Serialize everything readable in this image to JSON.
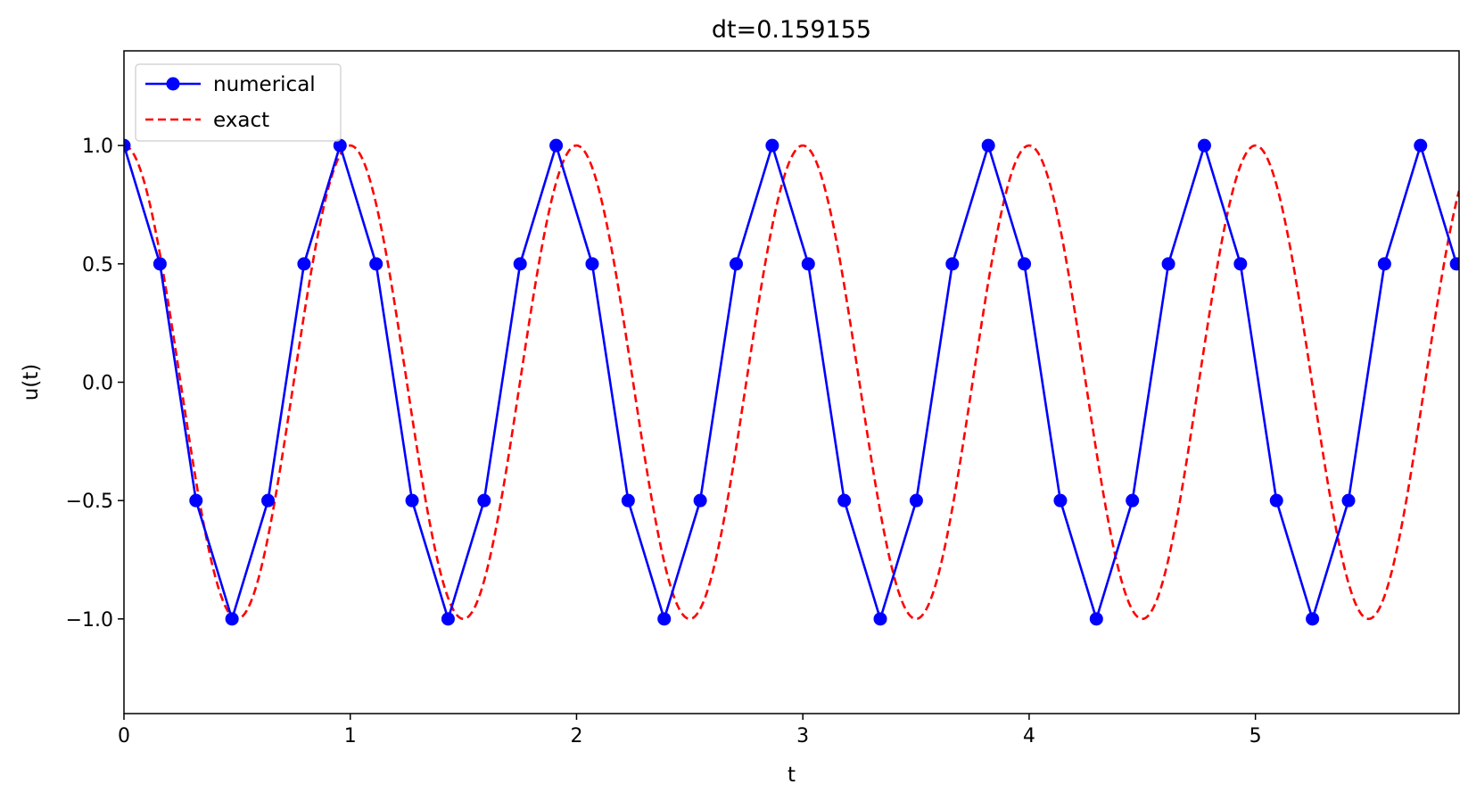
{
  "chart_data": {
    "type": "line",
    "title": "dt=0.159155",
    "xlabel": "t",
    "ylabel": "u(t)",
    "xlim": [
      0,
      5.9
    ],
    "ylim": [
      -1.4,
      1.4
    ],
    "x_ticks": [
      0,
      1,
      2,
      3,
      4,
      5
    ],
    "x_tick_labels": [
      "0",
      "1",
      "2",
      "3",
      "4",
      "5"
    ],
    "y_ticks": [
      1.0,
      0.5,
      0.0,
      -0.5,
      -1.0
    ],
    "y_tick_labels": [
      "1.0",
      "0.5",
      "0.0",
      "−0.5",
      "−1.0"
    ],
    "grid": false,
    "legend_position": "upper-left",
    "series": [
      {
        "name": "numerical",
        "color": "#0000ff",
        "style": "solid-with-circle-markers",
        "dt": 0.159155,
        "values": [
          1.0,
          0.5,
          -0.5,
          -1.0,
          -0.5,
          0.5,
          1.0,
          0.5,
          -0.5,
          -1.0,
          -0.5,
          0.5,
          1.0,
          0.5,
          -0.5,
          -1.0,
          -0.5,
          0.5,
          1.0,
          0.5,
          -0.5,
          -1.0,
          -0.5,
          0.5,
          1.0,
          0.5,
          -0.5,
          -1.0,
          -0.5,
          0.5,
          1.0,
          0.5,
          -0.5,
          -1.0,
          -0.5,
          0.5,
          1.0,
          0.5
        ]
      },
      {
        "name": "exact",
        "color": "#ff0000",
        "style": "dashed",
        "function": "cos(2*pi*t)"
      }
    ]
  }
}
